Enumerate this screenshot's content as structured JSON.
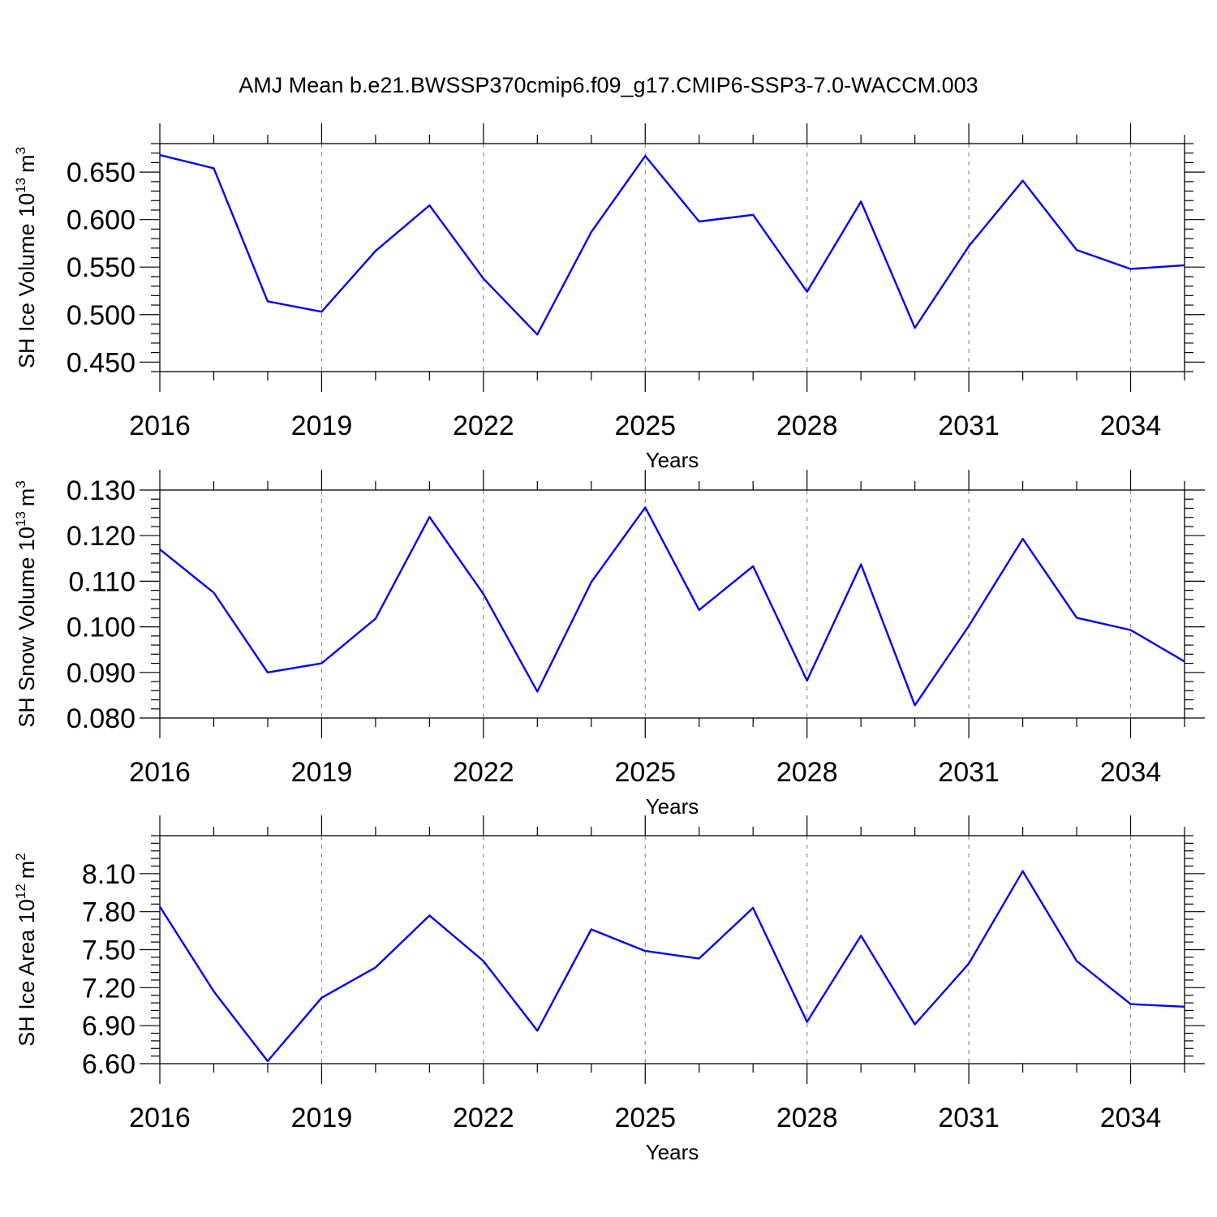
{
  "figure": {
    "title": "AMJ Mean b.e21.BWSSP370cmip6.f09_g17.CMIP6-SSP3-7.0-WACCM.003"
  },
  "chart_data": [
    {
      "type": "line",
      "title": "",
      "xlabel": "Years",
      "ylabel": {
        "base": "SH Ice Volume 10",
        "exponent": "13",
        "unit": "m",
        "unit_exponent": "3"
      },
      "x": [
        2016,
        2017,
        2018,
        2019,
        2020,
        2021,
        2022,
        2023,
        2024,
        2025,
        2026,
        2027,
        2028,
        2029,
        2030,
        2031,
        2032,
        2033,
        2034,
        2035
      ],
      "xlim": [
        2016,
        2035
      ],
      "ylim": [
        0.44,
        0.68
      ],
      "x_ticks": [
        2016,
        2019,
        2022,
        2025,
        2028,
        2031,
        2034
      ],
      "x_tick_labels": [
        "2016",
        "2019",
        "2022",
        "2025",
        "2028",
        "2031",
        "2034"
      ],
      "y_ticks": [
        0.45,
        0.5,
        0.55,
        0.6,
        0.65
      ],
      "y_tick_labels": [
        "0.450",
        "0.500",
        "0.550",
        "0.600",
        "0.650"
      ],
      "y_minor_step": 0.01,
      "grid": "vertical dashed at major x ticks",
      "series": [
        {
          "color": "#0000ff",
          "values": [
            0.668,
            0.654,
            0.514,
            0.503,
            0.567,
            0.615,
            0.538,
            0.479,
            0.587,
            0.667,
            0.598,
            0.605,
            0.524,
            0.619,
            0.486,
            0.572,
            0.641,
            0.568,
            0.548,
            0.552
          ]
        }
      ]
    },
    {
      "type": "line",
      "title": "",
      "xlabel": "Years",
      "ylabel": {
        "base": "SH Snow Volume 10",
        "exponent": "13",
        "unit": "m",
        "unit_exponent": "3"
      },
      "x": [
        2016,
        2017,
        2018,
        2019,
        2020,
        2021,
        2022,
        2023,
        2024,
        2025,
        2026,
        2027,
        2028,
        2029,
        2030,
        2031,
        2032,
        2033,
        2034,
        2035
      ],
      "xlim": [
        2016,
        2035
      ],
      "ylim": [
        0.08,
        0.13
      ],
      "x_ticks": [
        2016,
        2019,
        2022,
        2025,
        2028,
        2031,
        2034
      ],
      "x_tick_labels": [
        "2016",
        "2019",
        "2022",
        "2025",
        "2028",
        "2031",
        "2034"
      ],
      "y_ticks": [
        0.08,
        0.09,
        0.1,
        0.11,
        0.12,
        0.13
      ],
      "y_tick_labels": [
        "0.080",
        "0.090",
        "0.100",
        "0.110",
        "0.120",
        "0.130"
      ],
      "y_minor_step": 0.002,
      "grid": "vertical dashed at major x ticks",
      "series": [
        {
          "color": "#0000ff",
          "values": [
            0.117,
            0.1075,
            0.09,
            0.092,
            0.1018,
            0.1241,
            0.1072,
            0.0858,
            0.1098,
            0.1262,
            0.1037,
            0.1133,
            0.0882,
            0.1137,
            0.0828,
            0.1002,
            0.1193,
            0.102,
            0.0993,
            0.0924
          ]
        }
      ]
    },
    {
      "type": "line",
      "title": "",
      "xlabel": "Years",
      "ylabel": {
        "base": "SH Ice Area 10",
        "exponent": "12",
        "unit": "m",
        "unit_exponent": "2"
      },
      "x": [
        2016,
        2017,
        2018,
        2019,
        2020,
        2021,
        2022,
        2023,
        2024,
        2025,
        2026,
        2027,
        2028,
        2029,
        2030,
        2031,
        2032,
        2033,
        2034,
        2035
      ],
      "xlim": [
        2016,
        2035
      ],
      "ylim": [
        6.6,
        8.4
      ],
      "x_ticks": [
        2016,
        2019,
        2022,
        2025,
        2028,
        2031,
        2034
      ],
      "x_tick_labels": [
        "2016",
        "2019",
        "2022",
        "2025",
        "2028",
        "2031",
        "2034"
      ],
      "y_ticks": [
        6.6,
        6.9,
        7.2,
        7.5,
        7.8,
        8.1
      ],
      "y_tick_labels": [
        "6.60",
        "6.90",
        "7.20",
        "7.50",
        "7.80",
        "8.10"
      ],
      "y_minor_step": 0.06,
      "grid": "vertical dashed at major x ticks",
      "series": [
        {
          "color": "#0000ff",
          "values": [
            7.84,
            7.17,
            6.62,
            7.12,
            7.36,
            7.77,
            7.41,
            6.86,
            7.66,
            7.49,
            7.43,
            7.83,
            6.93,
            7.61,
            6.91,
            7.39,
            8.12,
            7.41,
            7.07,
            7.05
          ]
        }
      ]
    }
  ]
}
